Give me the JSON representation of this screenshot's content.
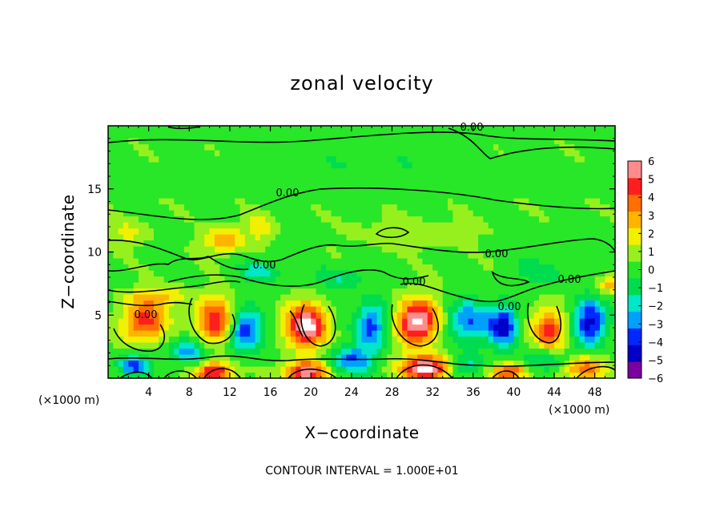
{
  "chart_data": {
    "type": "heatmap",
    "title": "zonal velocity",
    "xlabel": "X−coordinate",
    "ylabel": "Z−coordinate",
    "x_unit_left": "(×1000 m)",
    "x_unit_right": "(×1000 m)",
    "xlim": [
      0,
      50
    ],
    "ylim": [
      0,
      20
    ],
    "x_ticks": [
      4,
      8,
      12,
      16,
      20,
      24,
      28,
      32,
      36,
      40,
      44,
      48
    ],
    "y_ticks": [
      5,
      10,
      15
    ],
    "colorbar": {
      "range": [
        -6,
        6
      ],
      "ticks": [
        6,
        5,
        4,
        3,
        2,
        1,
        0,
        -1,
        -2,
        -3,
        -4,
        -5,
        -6
      ],
      "tick_labels": [
        "6",
        "5",
        "4",
        "3",
        "2",
        "1",
        "0",
        "−1",
        "−2",
        "−3",
        "−4",
        "−5",
        "−6"
      ],
      "colors": [
        "#7a00a0",
        "#0000c8",
        "#0028ff",
        "#00a0ff",
        "#00e6c8",
        "#00dc50",
        "#28e628",
        "#96f01e",
        "#f0f000",
        "#ffb400",
        "#ff6e00",
        "#ff1e1e",
        "#ff8c8c"
      ]
    },
    "contour_labels": [
      "0.00",
      "0.00",
      "0.00",
      "0.00",
      "0.00",
      "0.00",
      "0.00",
      "0.00"
    ],
    "footnote": "CONTOUR INTERVAL = 1.000E+01",
    "blobs": [
      {
        "x": 3.5,
        "z": 4.5,
        "v": 4.5,
        "sx": 2.2,
        "sz": 1.6
      },
      {
        "x": 10.5,
        "z": 4.5,
        "v": 5.0,
        "sx": 1.8,
        "sz": 1.8
      },
      {
        "x": 19.5,
        "z": 4.2,
        "v": 6.5,
        "sx": 2.0,
        "sz": 1.7
      },
      {
        "x": 30.5,
        "z": 4.5,
        "v": 6.5,
        "sx": 2.0,
        "sz": 1.8
      },
      {
        "x": 43.5,
        "z": 3.8,
        "v": 4.5,
        "sx": 1.6,
        "sz": 1.8
      },
      {
        "x": 13.5,
        "z": 3.8,
        "v": -4.5,
        "sx": 1.6,
        "sz": 1.6
      },
      {
        "x": 26.0,
        "z": 4.2,
        "v": -4.0,
        "sx": 1.5,
        "sz": 1.8
      },
      {
        "x": 35.5,
        "z": 4.5,
        "v": -3.5,
        "sx": 2.0,
        "sz": 1.6
      },
      {
        "x": 39.0,
        "z": 4.2,
        "v": -5.0,
        "sx": 1.4,
        "sz": 1.6
      },
      {
        "x": 47.5,
        "z": 4.5,
        "v": -5.0,
        "sx": 1.6,
        "sz": 1.8
      },
      {
        "x": 8.0,
        "z": 2.2,
        "v": -3.0,
        "sx": 2.0,
        "sz": 1.0
      },
      {
        "x": 2.5,
        "z": 1.0,
        "v": -4.0,
        "sx": 1.5,
        "sz": 0.8
      },
      {
        "x": 10.5,
        "z": 0.5,
        "v": 5.5,
        "sx": 1.8,
        "sz": 0.8
      },
      {
        "x": 19.5,
        "z": 0.5,
        "v": 6.0,
        "sx": 2.0,
        "sz": 0.8
      },
      {
        "x": 31.5,
        "z": 0.8,
        "v": 6.5,
        "sx": 2.5,
        "sz": 1.0
      },
      {
        "x": 39.5,
        "z": 0.5,
        "v": 4.5,
        "sx": 1.8,
        "sz": 0.7
      },
      {
        "x": 47.0,
        "z": 0.8,
        "v": 4.0,
        "sx": 2.0,
        "sz": 0.9
      },
      {
        "x": 24.0,
        "z": 1.5,
        "v": -3.5,
        "sx": 2.0,
        "sz": 1.0
      },
      {
        "x": 35.0,
        "z": 1.0,
        "v": -2.5,
        "sx": 2.0,
        "sz": 0.9
      },
      {
        "x": 43.0,
        "z": 1.5,
        "v": -2.5,
        "sx": 2.0,
        "sz": 1.0
      },
      {
        "x": 11.5,
        "z": 11.0,
        "v": 3.0,
        "sx": 2.0,
        "sz": 1.0
      },
      {
        "x": 15.0,
        "z": 12.0,
        "v": 2.0,
        "sx": 1.2,
        "sz": 1.0
      },
      {
        "x": 49.5,
        "z": 7.5,
        "v": 2.5,
        "sx": 1.2,
        "sz": 0.8
      },
      {
        "x": 15.0,
        "z": 8.5,
        "v": -2.0,
        "sx": 2.0,
        "sz": 0.8
      },
      {
        "x": 23.0,
        "z": 8.0,
        "v": -1.5,
        "sx": 2.5,
        "sz": 0.9
      },
      {
        "x": 2.0,
        "z": 11.5,
        "v": 1.5,
        "sx": 2.0,
        "sz": 1.0
      },
      {
        "x": 30.0,
        "z": 11.5,
        "v": 1.0,
        "sx": 6.0,
        "sz": 1.2
      },
      {
        "x": 43.0,
        "z": 8.5,
        "v": -1.2,
        "sx": 3.0,
        "sz": 1.0
      },
      {
        "x": 25.0,
        "z": 16.5,
        "v": -0.5,
        "sx": 12.0,
        "sz": 2.0
      },
      {
        "x": 5.0,
        "z": 6.5,
        "v": 2.0,
        "sx": 3.0,
        "sz": 0.8
      }
    ]
  }
}
